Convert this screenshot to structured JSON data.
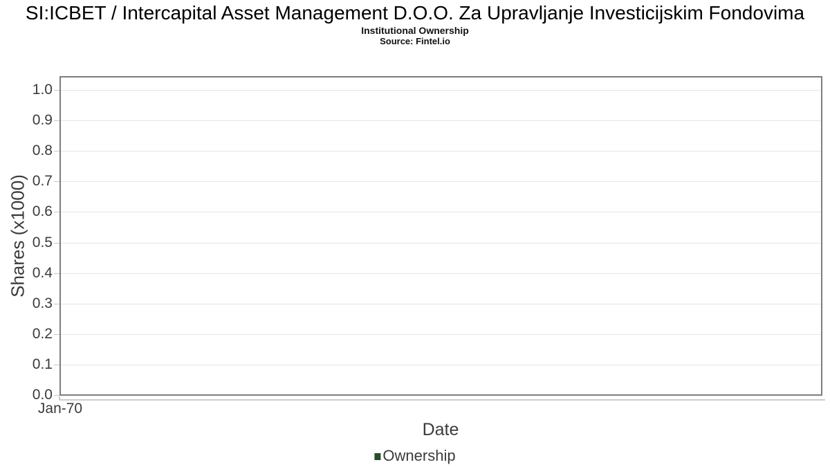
{
  "chart_data": {
    "type": "line",
    "title": "SI:ICBET / Intercapital Asset Management D.O.O. Za Upravljanje Investicijskim Fondovima",
    "subtitle": "Institutional Ownership",
    "source_note": "Source: Fintel.io",
    "xlabel": "Date",
    "ylabel": "Shares (x1000)",
    "x_tick_labels": [
      "Jan-70"
    ],
    "y_tick_labels": [
      "0.0",
      "0.1",
      "0.2",
      "0.3",
      "0.4",
      "0.5",
      "0.6",
      "0.7",
      "0.8",
      "0.9",
      "1.0"
    ],
    "ylim": [
      0.0,
      1.05
    ],
    "grid": "horizontal",
    "legend_position": "bottom-center",
    "series": [
      {
        "name": "Ownership",
        "color": "#2a4d2e",
        "x": [],
        "y": []
      }
    ]
  }
}
